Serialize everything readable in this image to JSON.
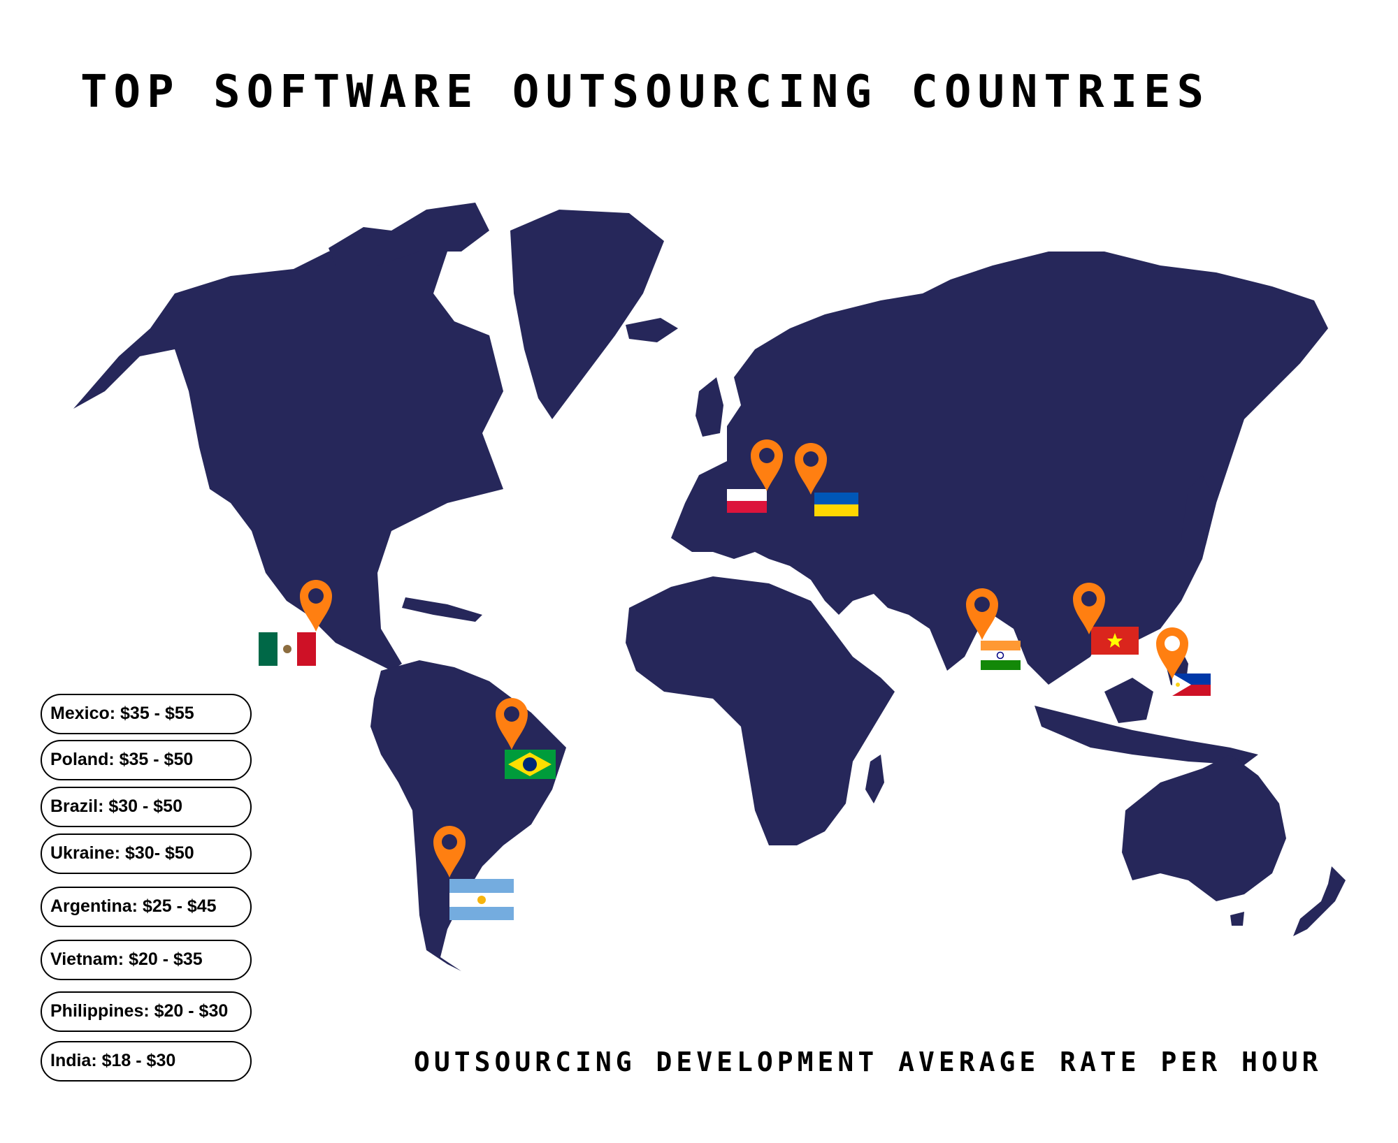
{
  "title": "TOP SOFTWARE OUTSOURCING COUNTRIES",
  "subtitle": "OUTSOURCING DEVELOPMENT AVERAGE RATE PER HOUR",
  "colors": {
    "land": "#26275a",
    "pin": "#ff7f11",
    "pin_dot": "#26275a",
    "background": "#ffffff"
  },
  "rates": [
    {
      "label": "Mexico: $35 - $55"
    },
    {
      "label": "Poland: $35 - $50"
    },
    {
      "label": "Brazil: $30 - $50"
    },
    {
      "label": "Ukraine: $30- $50"
    },
    {
      "label": "Argentina: $25 - $45"
    },
    {
      "label": "Vietnam: $20 - $35"
    },
    {
      "label": "Philippines: $20 - $30"
    },
    {
      "label": "India: $18 - $30"
    }
  ],
  "markers": [
    {
      "country": "Mexico",
      "icon": "mexico-flag-icon"
    },
    {
      "country": "Poland",
      "icon": "poland-flag-icon"
    },
    {
      "country": "Ukraine",
      "icon": "ukraine-flag-icon"
    },
    {
      "country": "Brazil",
      "icon": "brazil-flag-icon"
    },
    {
      "country": "Argentina",
      "icon": "argentina-flag-icon"
    },
    {
      "country": "India",
      "icon": "india-flag-icon"
    },
    {
      "country": "Vietnam",
      "icon": "vietnam-flag-icon"
    },
    {
      "country": "Philippines",
      "icon": "philippines-flag-icon"
    }
  ]
}
